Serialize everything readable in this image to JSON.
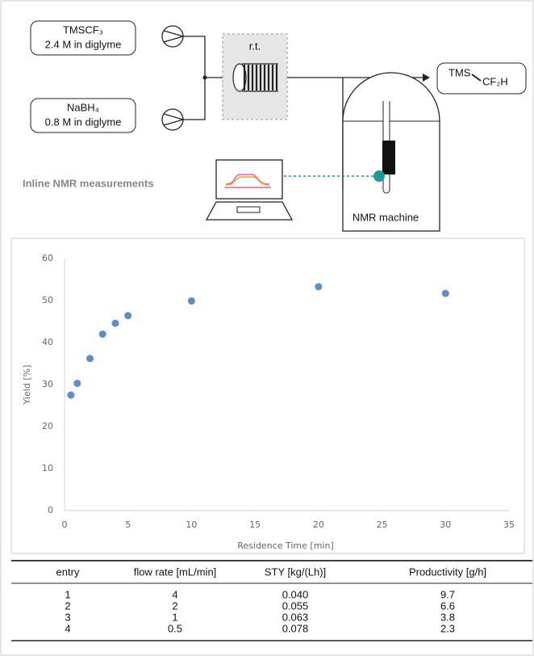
{
  "diagram": {
    "reagent_1": {
      "name": "TMSCF₃",
      "conc": "2.4 M in diglyme"
    },
    "reagent_2": {
      "name": "NaBH₄",
      "conc": "0.8 M in diglyme"
    },
    "reactor": "r.t.",
    "product": {
      "left": "TMS",
      "right": "CF₂H"
    },
    "inline_label": "Inline NMR measurements",
    "machine": "NMR machine"
  },
  "chart_data": {
    "type": "scatter",
    "x_label": "Residence Time [min]",
    "y_label": "Yield [%]",
    "x": [
      0.5,
      1,
      2,
      3,
      4,
      5,
      10,
      20,
      30
    ],
    "values": [
      27.5,
      30.3,
      36.2,
      42.0,
      44.6,
      46.4,
      49.9,
      53.3,
      51.7
    ],
    "color": "#5b8fc9",
    "xlim": [
      0,
      35
    ],
    "xticks": [
      0,
      5,
      10,
      15,
      20,
      25,
      30,
      35
    ],
    "ylim": [
      0,
      60
    ],
    "yticks": [
      0,
      10,
      20,
      30,
      40,
      50,
      60
    ],
    "grid": false
  },
  "table": {
    "header": [
      "entry",
      "flow rate [mL/min]",
      "STY [kg/(Lh)]",
      "Productivity [g/h]"
    ],
    "rows": [
      [
        "1",
        "4",
        "0.040",
        "9.7"
      ],
      [
        "2",
        "2",
        "0.055",
        "6.6"
      ],
      [
        "3",
        "1",
        "0.063",
        "3.8"
      ],
      [
        "4",
        "0.5",
        "0.078",
        "2.3"
      ]
    ]
  }
}
